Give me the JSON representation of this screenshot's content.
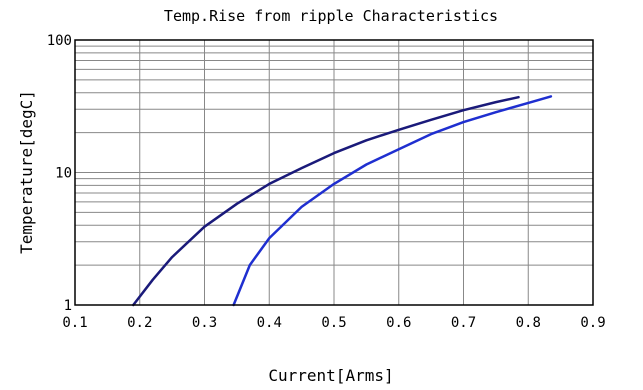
{
  "chart_data": {
    "type": "line",
    "title": "Temp.Rise from ripple Characteristics",
    "xlabel": "Current[Arms]",
    "ylabel": "Temperature[degC]",
    "xlim": [
      0.1,
      0.9
    ],
    "ylim": [
      1,
      100
    ],
    "yscale": "log",
    "grid": true,
    "x_ticks": [
      "0.1",
      "0.2",
      "0.3",
      "0.4",
      "0.5",
      "0.6",
      "0.7",
      "0.8",
      "0.9"
    ],
    "y_ticks": [
      "1",
      "10",
      "100"
    ],
    "series": [
      {
        "color": "#1a1a7a",
        "x": [
          0.19,
          0.22,
          0.25,
          0.3,
          0.35,
          0.4,
          0.45,
          0.5,
          0.55,
          0.6,
          0.65,
          0.7,
          0.75,
          0.785
        ],
        "y": [
          1,
          1.55,
          2.3,
          3.9,
          5.8,
          8.2,
          10.8,
          14,
          17.5,
          21,
          25,
          29.5,
          34,
          37
        ]
      },
      {
        "color": "#1f2fd0",
        "x": [
          0.345,
          0.37,
          0.4,
          0.45,
          0.5,
          0.55,
          0.6,
          0.65,
          0.7,
          0.75,
          0.8,
          0.835
        ],
        "y": [
          1,
          2,
          3.2,
          5.5,
          8.2,
          11.5,
          15,
          19.5,
          24,
          28.5,
          33.5,
          37.5
        ]
      }
    ]
  }
}
